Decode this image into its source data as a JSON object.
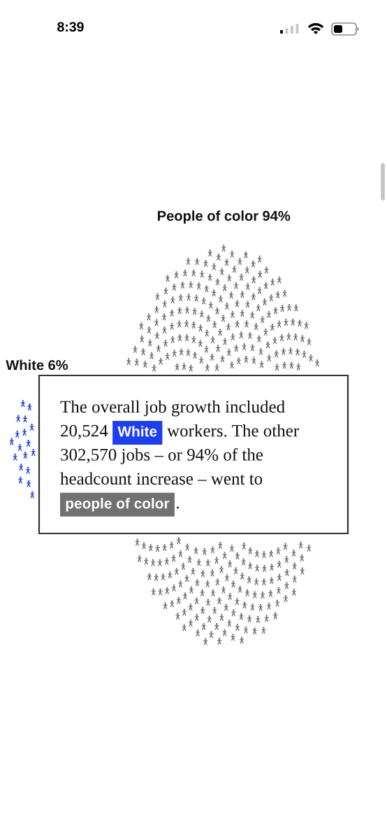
{
  "chart_data": {
    "type": "other",
    "categories": [
      "White",
      "People of color"
    ],
    "values": [
      6,
      94
    ],
    "value_labels": [
      "6%",
      "94%"
    ],
    "colors": [
      "#1d3ff2",
      "#717171"
    ],
    "annotations": [
      "8:39",
      "The overall job growth included 20,524 White workers. The other 302,570 jobs – or 94% of the headcount increase – went to people of color."
    ]
  }
}
